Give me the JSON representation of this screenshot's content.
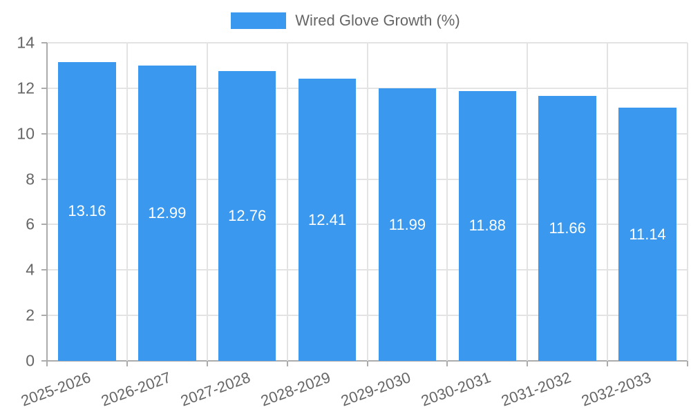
{
  "chart_data": {
    "type": "bar",
    "title": "",
    "legend": {
      "label": "Wired Glove Growth (%)",
      "position": "top"
    },
    "categories": [
      "2025-2026",
      "2026-2027",
      "2027-2028",
      "2028-2029",
      "2029-2030",
      "2030-2031",
      "2031-2032",
      "2032-2033"
    ],
    "values": [
      13.16,
      12.99,
      12.76,
      12.41,
      11.99,
      11.88,
      11.66,
      11.14
    ],
    "value_label_decimals": 2,
    "xlabel": "",
    "ylabel": "",
    "ylim": [
      0,
      14
    ],
    "yticks": [
      0,
      2,
      4,
      6,
      8,
      10,
      12,
      14
    ],
    "grid": true,
    "colors": {
      "bar": "#3a99ee",
      "grid": "#e3e3e3",
      "axis": "#ababab",
      "tick_text": "#666666",
      "legend_text": "#666666",
      "value_label": "#ffffff",
      "background": "#ffffff"
    }
  }
}
